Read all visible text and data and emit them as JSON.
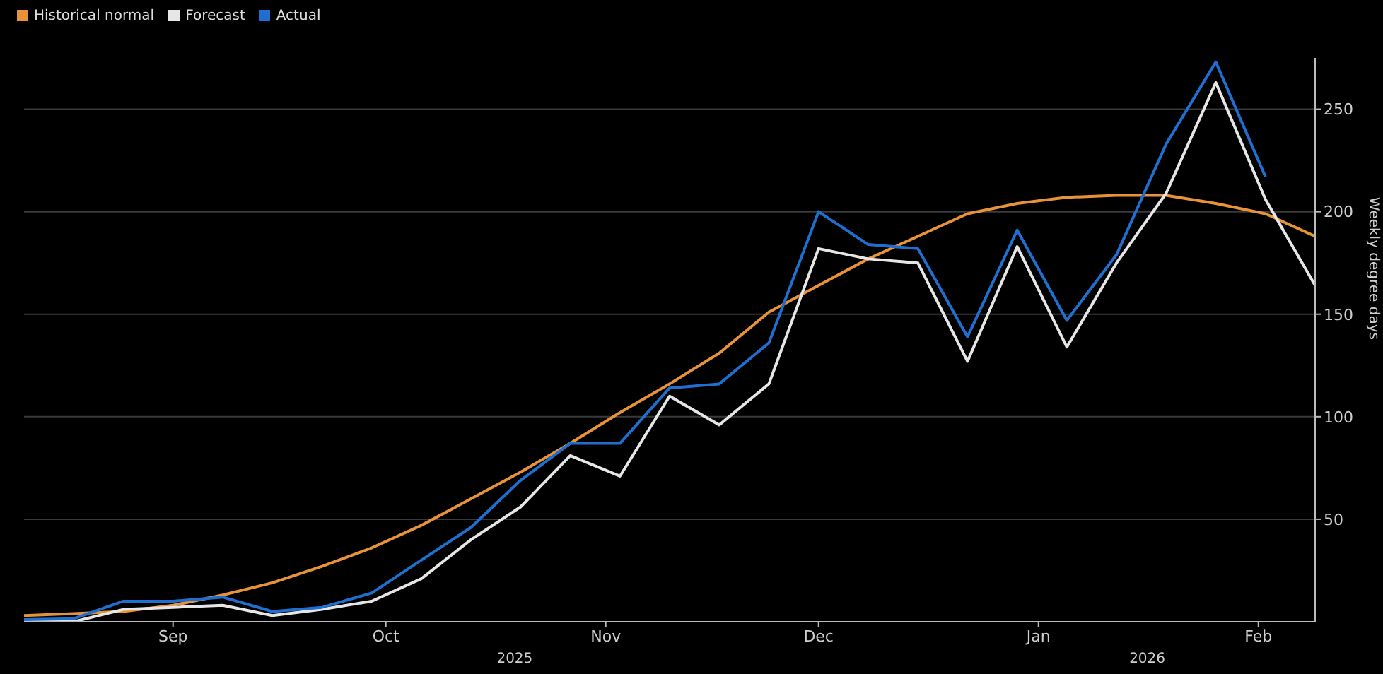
{
  "chart_data": {
    "type": "line",
    "ylabel": "Weekly degree days",
    "x": [
      "2025-08-11",
      "2025-08-18",
      "2025-08-25",
      "2025-09-01",
      "2025-09-08",
      "2025-09-15",
      "2025-09-22",
      "2025-09-29",
      "2025-10-06",
      "2025-10-13",
      "2025-10-20",
      "2025-10-27",
      "2025-11-03",
      "2025-11-10",
      "2025-11-17",
      "2025-11-24",
      "2025-12-01",
      "2025-12-08",
      "2025-12-15",
      "2025-12-22",
      "2025-12-29",
      "2026-01-05",
      "2026-01-12",
      "2026-01-19",
      "2026-01-26",
      "2026-02-02",
      "2026-02-09"
    ],
    "series": [
      {
        "name": "Historical normal",
        "color": "#e8923a",
        "values": [
          3,
          4,
          5,
          8,
          13,
          19,
          27,
          36,
          47,
          60,
          73,
          87,
          102,
          116,
          131,
          151,
          164,
          177,
          188,
          199,
          204,
          207,
          208,
          208,
          204,
          199,
          188
        ]
      },
      {
        "name": "Forecast",
        "color": "#e6e6e6",
        "values": [
          0,
          0,
          6,
          7,
          8,
          3,
          6,
          10,
          21,
          40,
          56,
          81,
          71,
          110,
          96,
          116,
          182,
          177,
          175,
          127,
          183,
          134,
          175,
          209,
          263,
          206,
          164
        ]
      },
      {
        "name": "Actual",
        "color": "#1f6fd1",
        "values": [
          1,
          1.5,
          10,
          10,
          12,
          5,
          7,
          14,
          30,
          46,
          69,
          87,
          87,
          114,
          116,
          136,
          200,
          184,
          182,
          139,
          191,
          147,
          179,
          233,
          273,
          217,
          null
        ]
      }
    ],
    "xlim": [
      "2025-08-11",
      "2026-02-09"
    ],
    "xticks": [
      {
        "value": "2025-09-01",
        "label": "Sep"
      },
      {
        "value": "2025-10-01",
        "label": "Oct"
      },
      {
        "value": "2025-11-01",
        "label": "Nov"
      },
      {
        "value": "2025-12-01",
        "label": "Dec"
      },
      {
        "value": "2026-01-01",
        "label": "Jan"
      },
      {
        "value": "2026-02-01",
        "label": "Feb"
      }
    ],
    "ylim": [
      0,
      275
    ],
    "yticks": [
      50,
      100,
      150,
      200,
      250
    ],
    "grid": "y",
    "legend": "top left",
    "annotations": [
      "2025",
      "2026"
    ]
  }
}
